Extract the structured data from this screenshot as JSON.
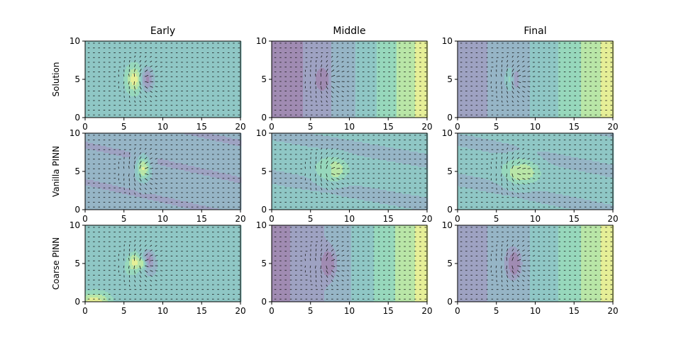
{
  "figure": {
    "column_titles": [
      "Early",
      "Middle",
      "Final"
    ],
    "row_labels": [
      "Solution",
      "Vanilla PINN",
      "Coarse PINN"
    ]
  },
  "chart_data": {
    "type": "contour",
    "layout": "3x3 grid of filled contour plots with vector (quiver) field overlay",
    "colormap": "viridis (semi-transparent fill)",
    "grid": false,
    "x_axis": {
      "range": [
        0,
        20
      ],
      "ticks": [
        0,
        5,
        10,
        15,
        20
      ]
    },
    "y_axis": {
      "range": [
        0,
        10
      ],
      "ticks": [
        0,
        5,
        10
      ]
    },
    "feature_center": [
      7,
      5
    ],
    "panels": [
      {
        "row": "Solution",
        "column": "Early",
        "field": "nearly uniform (~0.5) with a localized positive/negative dipole at x≈7, y≈5; faint vertical contours near x≈7.3 and x≈13.5"
      },
      {
        "row": "Solution",
        "column": "Middle",
        "field": "increasing left to right (dark at x<7, yellow near x≈20); vertical contour bands at x≈7, 11, 14, 17, 19.5; dipole near x≈7, y≈5"
      },
      {
        "row": "Solution",
        "column": "Final",
        "field": "increasing left to right; contour bands at x≈8, 13, 17.5; yellow band x>18; small dipole at x≈7, y≈5"
      },
      {
        "row": "Vanilla PINN",
        "column": "Early",
        "field": "low-valued background with wavy horizontal contours; bright blob at x≈7.5, y≈5"
      },
      {
        "row": "Vanilla PINN",
        "column": "Middle",
        "field": "medium background with horizontal contour streaks; bright ring structure at x≈7.5, y≈5"
      },
      {
        "row": "Vanilla PINN",
        "column": "Final",
        "field": "medium background with horizontal streaks; bright ring structure at x≈8, y≈5"
      },
      {
        "row": "Coarse PINN",
        "column": "Early",
        "field": "noisy field with multiple small blobs around x≈5-9, y≈5; yellow spot near x≈1, y≈0"
      },
      {
        "row": "Coarse PINN",
        "column": "Middle",
        "field": "increasing left to right; contour bands at x≈11, 14, 17, 19.5; dark dipole at x≈7, y≈5"
      },
      {
        "row": "Coarse PINN",
        "column": "Final",
        "field": "increasing left to right; contour bands at x≈13, 17.5; yellow band x>18; dark dipole at x≈7.5, y≈5"
      }
    ]
  }
}
